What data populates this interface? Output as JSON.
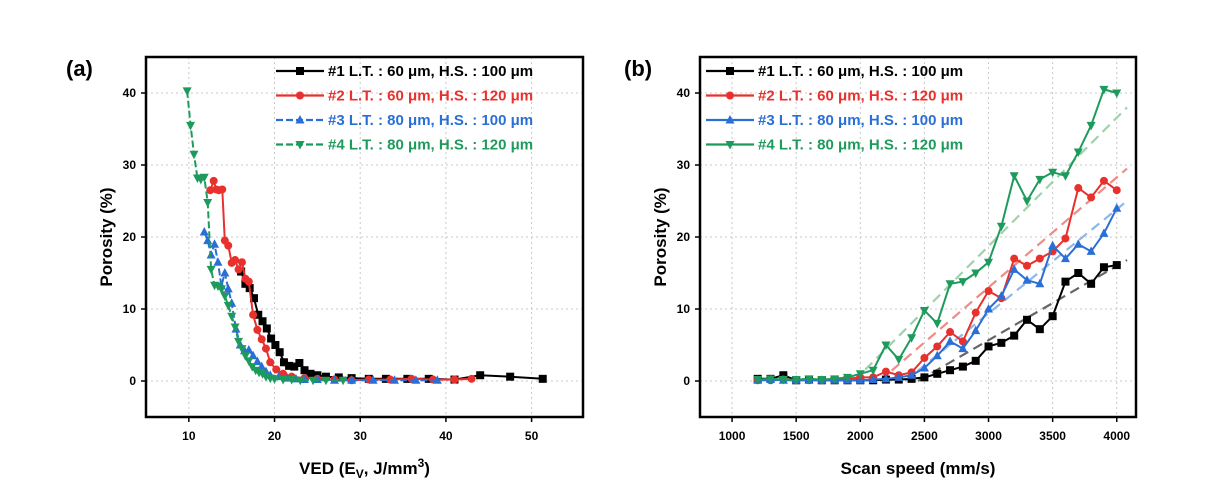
{
  "chart_data": [
    {
      "panel_label": "(a)",
      "type": "line",
      "xlabel": {
        "main": "VED (E",
        "sub": "V",
        "mid": ", J/mm",
        "sup": "3",
        "end": ")"
      },
      "ylabel": "Porosity (%)",
      "xlim": [
        5,
        56
      ],
      "ylim": [
        -5,
        45
      ],
      "xticks": [
        10,
        20,
        30,
        40,
        50
      ],
      "yticks": [
        0,
        10,
        20,
        30,
        40
      ],
      "grid": true,
      "legend_position": "top-right",
      "series": [
        {
          "name": "#1 L.T. : 60 μm, H.S. : 100 μm",
          "color": "#000000",
          "marker": "square",
          "dashed": false,
          "x": [
            16.1,
            16.6,
            17.1,
            17.6,
            18.1,
            18.6,
            19.1,
            19.6,
            20.1,
            20.6,
            21.1,
            21.7,
            22.3,
            22.9,
            23.5,
            24.2,
            25.0,
            26.0,
            27.5,
            29.0,
            31.0,
            33.0,
            35.5,
            38.0,
            41.0,
            44.0,
            47.5,
            51.3
          ],
          "y": [
            15.2,
            13.5,
            12.9,
            11.5,
            9.2,
            8.3,
            7.3,
            5.9,
            5.0,
            4.0,
            2.6,
            2.1,
            2.0,
            2.5,
            1.5,
            1.0,
            0.8,
            0.6,
            0.5,
            0.4,
            0.3,
            0.3,
            0.3,
            0.3,
            0.2,
            0.8,
            0.6,
            0.3
          ]
        },
        {
          "name": "#2 L.T. : 60 μm, H.S. : 120 μm",
          "color": "#e8302c",
          "marker": "circle",
          "dashed": false,
          "x": [
            12.5,
            12.9,
            13.2,
            13.5,
            13.9,
            14.2,
            14.6,
            15.0,
            15.4,
            15.8,
            16.2,
            16.6,
            17.0,
            17.5,
            18.0,
            18.5,
            19.0,
            19.5,
            20.2,
            21.0,
            22.0,
            23.5,
            25.0,
            27.0,
            29.0,
            31.0,
            33.5,
            36.0,
            38.5,
            41.0,
            43.0
          ],
          "y": [
            26.5,
            27.8,
            26.6,
            26.5,
            26.6,
            19.5,
            18.8,
            16.4,
            16.8,
            15.5,
            16.5,
            14.2,
            13.8,
            9.2,
            7.1,
            5.8,
            4.5,
            2.6,
            1.6,
            1.0,
            0.6,
            0.4,
            0.3,
            0.2,
            0.1,
            0.2,
            0.2,
            0.3,
            0.2,
            0.2,
            0.3
          ]
        },
        {
          "name": "#3 L.T. : 80 μm, H.S. : 100 μm",
          "color": "#2a6fd6",
          "marker": "triangle-up",
          "dashed": true,
          "x": [
            11.8,
            12.2,
            12.6,
            13.0,
            13.4,
            13.8,
            14.2,
            14.6,
            15.0,
            15.5,
            16.0,
            16.5,
            17.0,
            17.5,
            18.0,
            18.5,
            19.0,
            19.5,
            20.5,
            21.5,
            22.5,
            23.5,
            25.0,
            27.0,
            29.0,
            31.5,
            34.0,
            36.5,
            39.0
          ],
          "y": [
            20.7,
            19.5,
            17.5,
            19.0,
            16.5,
            13.2,
            15.0,
            12.8,
            10.8,
            7.2,
            5.0,
            4.2,
            4.3,
            3.5,
            2.7,
            2.0,
            1.3,
            0.8,
            0.6,
            0.4,
            0.3,
            0.2,
            0.2,
            0.1,
            0.1,
            0.1,
            0.1,
            0.1,
            0.1
          ]
        },
        {
          "name": "#4 L.T. : 80 μm, H.S. : 120 μm",
          "color": "#1e9b5c",
          "marker": "triangle-down",
          "dashed": true,
          "x": [
            9.8,
            10.2,
            10.6,
            11.0,
            11.4,
            11.8,
            12.2,
            12.6,
            13.0,
            13.4,
            13.8,
            14.2,
            14.6,
            15.0,
            15.4,
            15.8,
            16.2,
            16.6,
            17.0,
            17.4,
            17.8,
            18.2,
            18.6,
            19.0,
            19.5,
            20.0,
            21.0,
            22.0,
            23.0,
            24.5,
            26.0,
            28.0
          ],
          "y": [
            40.3,
            35.5,
            31.5,
            28.2,
            28.0,
            28.3,
            24.8,
            15.5,
            13.3,
            13.2,
            12.8,
            11.8,
            10.5,
            9.0,
            7.5,
            5.5,
            4.5,
            3.5,
            2.8,
            2.0,
            1.5,
            1.2,
            1.0,
            0.6,
            0.4,
            0.3,
            0.2,
            0.2,
            0.1,
            0.1,
            0.1,
            0.1
          ]
        }
      ]
    },
    {
      "panel_label": "(b)",
      "type": "line",
      "xlabel": "Scan speed (mm/s)",
      "ylabel": "Porosity (%)",
      "xlim": [
        750,
        4150
      ],
      "ylim": [
        -5,
        45
      ],
      "xticks": [
        1000,
        1500,
        2000,
        2500,
        3000,
        3500,
        4000
      ],
      "yticks": [
        0,
        10,
        20,
        30,
        40
      ],
      "grid": true,
      "legend_position": "top-left",
      "series": [
        {
          "name": "#1 L.T. : 60 μm, H.S. : 100 μm",
          "color": "#000000",
          "marker": "square",
          "dashed": false,
          "x": [
            1200,
            1300,
            1400,
            1500,
            1600,
            1700,
            1800,
            1900,
            2000,
            2100,
            2200,
            2300,
            2400,
            2500,
            2600,
            2700,
            2800,
            2900,
            3000,
            3100,
            3200,
            3300,
            3400,
            3500,
            3600,
            3700,
            3800,
            3900,
            4000
          ],
          "y": [
            0.3,
            0.3,
            0.8,
            0.1,
            0.2,
            0.1,
            0.1,
            0.1,
            0.1,
            0.1,
            0.2,
            0.2,
            0.3,
            0.5,
            1.0,
            1.5,
            2.0,
            2.8,
            4.8,
            5.3,
            6.3,
            8.5,
            7.2,
            9.0,
            13.8,
            15.0,
            13.5,
            15.8,
            16.1
          ]
        },
        {
          "name": "#2 L.T. : 60 μm, H.S. : 120 μm",
          "color": "#e8302c",
          "marker": "circle",
          "dashed": false,
          "x": [
            1200,
            1300,
            1400,
            1500,
            1600,
            1700,
            1800,
            1900,
            2000,
            2100,
            2200,
            2300,
            2400,
            2500,
            2600,
            2700,
            2800,
            2900,
            3000,
            3100,
            3200,
            3300,
            3400,
            3500,
            3600,
            3700,
            3800,
            3900,
            4000
          ],
          "y": [
            0.1,
            0.1,
            0.2,
            0.1,
            0.1,
            0.1,
            0.2,
            0.3,
            0.5,
            0.5,
            1.3,
            0.8,
            1.2,
            3.2,
            4.8,
            6.8,
            5.5,
            9.5,
            12.5,
            11.5,
            17.0,
            16.0,
            17.0,
            18.0,
            19.8,
            26.8,
            25.5,
            27.8,
            26.5
          ]
        },
        {
          "name": "#3 L.T. : 80 μm, H.S. : 100 μm",
          "color": "#2a6fd6",
          "marker": "triangle-up",
          "dashed": false,
          "x": [
            1200,
            1300,
            1400,
            1500,
            1600,
            1700,
            1800,
            1900,
            2000,
            2100,
            2200,
            2300,
            2400,
            2500,
            2600,
            2700,
            2800,
            2900,
            3000,
            3100,
            3200,
            3300,
            3400,
            3500,
            3600,
            3700,
            3800,
            3900,
            4000
          ],
          "y": [
            0.1,
            0.2,
            0.1,
            0.1,
            0.1,
            0.1,
            0.1,
            0.1,
            0.1,
            0.2,
            0.3,
            0.5,
            0.8,
            1.8,
            3.5,
            5.5,
            4.5,
            7.0,
            10.0,
            11.8,
            15.5,
            14.0,
            13.5,
            18.8,
            17.0,
            19.0,
            18.0,
            20.5,
            24.0
          ]
        },
        {
          "name": "#4 L.T. : 80 μm, H.S. : 120 μm",
          "color": "#1e9b5c",
          "marker": "triangle-down",
          "dashed": false,
          "x": [
            1200,
            1300,
            1400,
            1500,
            1600,
            1700,
            1800,
            1900,
            2000,
            2100,
            2200,
            2300,
            2400,
            2500,
            2600,
            2700,
            2800,
            2900,
            3000,
            3100,
            3200,
            3300,
            3400,
            3500,
            3600,
            3700,
            3800,
            3900,
            4000
          ],
          "y": [
            0.2,
            0.3,
            0.2,
            0.2,
            0.3,
            0.2,
            0.3,
            0.5,
            1.0,
            1.5,
            5.0,
            3.0,
            6.0,
            9.8,
            8.0,
            13.5,
            13.8,
            15.0,
            16.5,
            21.5,
            28.5,
            25.0,
            28.0,
            29.0,
            28.5,
            31.8,
            35.5,
            40.5,
            40.0
          ]
        }
      ],
      "fit_lines": [
        {
          "color": "#666666",
          "x": [
            2450,
            4080
          ],
          "y": [
            0.0,
            16.8
          ]
        },
        {
          "color": "#f08a86",
          "x": [
            2150,
            4080
          ],
          "y": [
            0.0,
            29.5
          ]
        },
        {
          "color": "#8fb6ec",
          "x": [
            2350,
            4080
          ],
          "y": [
            0.0,
            25.0
          ]
        },
        {
          "color": "#9ed2a9",
          "x": [
            1950,
            4080
          ],
          "y": [
            0.0,
            38.0
          ]
        }
      ]
    }
  ]
}
